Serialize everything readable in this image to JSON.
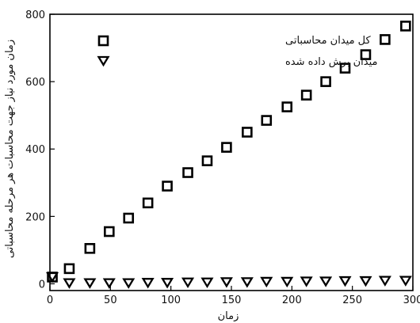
{
  "chart_data": {
    "type": "scatter",
    "title": "",
    "xlabel": "زمان",
    "ylabel": "زمان مورد نیاز جهت محاسبات هر مرحله محاسباتی",
    "xlim": [
      0,
      300
    ],
    "ylim": [
      -20,
      800
    ],
    "xticks": [
      0,
      50,
      100,
      150,
      200,
      250,
      300
    ],
    "yticks": [
      0,
      200,
      400,
      600,
      800
    ],
    "grid": false,
    "legend_position": "top-left",
    "series": [
      {
        "name": "کل میدان محاسباتی",
        "marker": "square",
        "x": [
          2,
          16,
          33,
          49,
          65,
          81,
          97,
          114,
          130,
          146,
          163,
          179,
          196,
          212,
          228,
          244,
          261,
          277,
          294
        ],
        "y": [
          20,
          45,
          105,
          155,
          195,
          240,
          290,
          330,
          365,
          405,
          450,
          485,
          525,
          560,
          600,
          640,
          680,
          725,
          765
        ]
      },
      {
        "name": "میدان برش داده شده",
        "marker": "triangle-down",
        "x": [
          2,
          16,
          33,
          49,
          65,
          81,
          97,
          114,
          130,
          146,
          163,
          179,
          196,
          212,
          228,
          244,
          261,
          277,
          294
        ],
        "y": [
          20,
          2,
          2,
          2,
          2,
          3,
          3,
          4,
          4,
          5,
          5,
          6,
          6,
          7,
          7,
          8,
          8,
          9,
          9
        ]
      }
    ]
  }
}
